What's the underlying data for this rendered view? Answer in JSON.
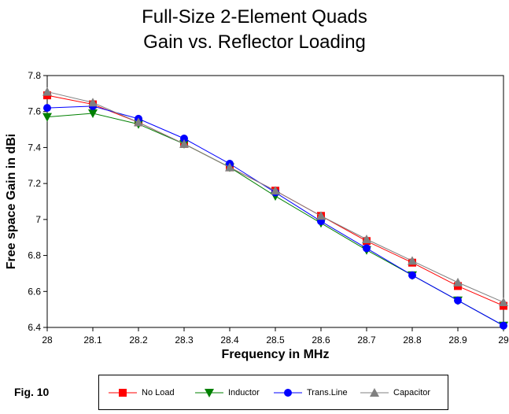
{
  "title_line1": "Full-Size 2-Element Quads",
  "title_line2": "Gain vs. Reflector Loading",
  "fig_label": "Fig. 10",
  "chart_data": {
    "type": "line",
    "title": "Full-Size 2-Element Quads Gain vs. Reflector Loading",
    "xlabel": "Frequency in MHz",
    "ylabel": "Free space Gain in dBi",
    "x": [
      28,
      28.1,
      28.2,
      28.3,
      28.4,
      28.5,
      28.6,
      28.7,
      28.8,
      28.9,
      29
    ],
    "xticks": [
      "28",
      "28.1",
      "28.2",
      "28.3",
      "28.4",
      "28.5",
      "28.6",
      "28.7",
      "28.8",
      "28.9",
      "29"
    ],
    "ylim": [
      6.4,
      7.8
    ],
    "yticks": [
      6.4,
      6.6,
      6.8,
      7,
      7.2,
      7.4,
      7.6,
      7.8
    ],
    "ytick_labels": [
      "6.4",
      "6.6",
      "6.8",
      "7",
      "7.2",
      "7.4",
      "7.6",
      "7.8"
    ],
    "grid": true,
    "legend_position": "bottom",
    "series": [
      {
        "name": "No Load",
        "color": "#ff0000",
        "marker": "square",
        "values": [
          7.69,
          7.64,
          7.54,
          7.42,
          7.29,
          7.16,
          7.02,
          6.88,
          6.76,
          6.63,
          6.52
        ]
      },
      {
        "name": "Inductor",
        "color": "#008000",
        "marker": "triangle-down",
        "values": [
          7.57,
          7.59,
          7.53,
          7.42,
          7.29,
          7.13,
          6.98,
          6.83,
          6.69,
          6.55,
          6.41
        ]
      },
      {
        "name": "Trans.Line",
        "color": "#0000ff",
        "marker": "circle",
        "values": [
          7.62,
          7.63,
          7.56,
          7.45,
          7.31,
          7.15,
          6.99,
          6.84,
          6.69,
          6.55,
          6.41
        ]
      },
      {
        "name": "Capacitor",
        "color": "#808080",
        "marker": "triangle-up",
        "values": [
          7.71,
          7.65,
          7.54,
          7.42,
          7.29,
          7.16,
          7.02,
          6.89,
          6.77,
          6.65,
          6.54
        ]
      }
    ]
  }
}
